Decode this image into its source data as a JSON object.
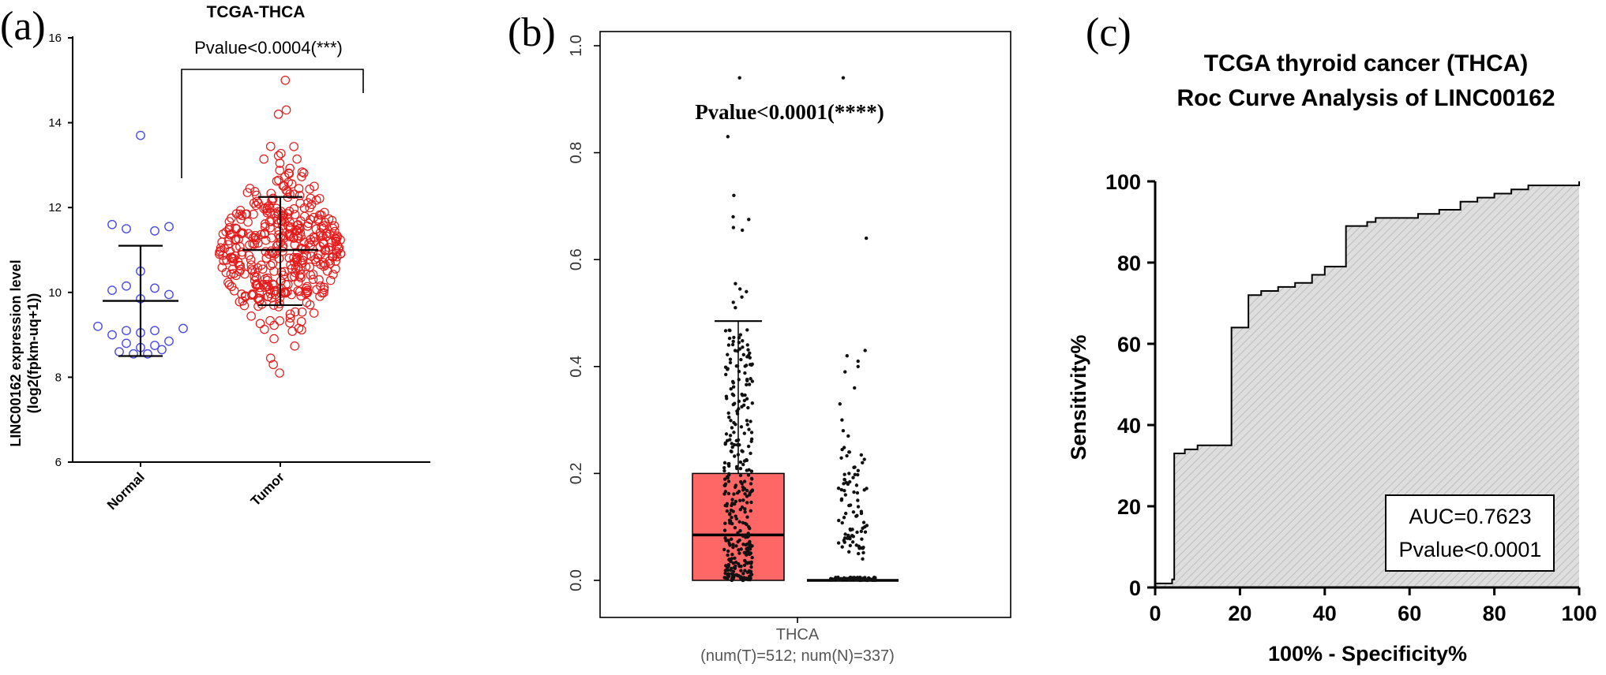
{
  "panels": {
    "a": {
      "label": "(a)"
    },
    "b": {
      "label": "(b)"
    },
    "c": {
      "label": "(c)"
    }
  },
  "colors": {
    "normal": "#4a4ae6",
    "tumor": "#e61a1a",
    "box_fill": "#ff6666",
    "roc_fill": "#d9d9d9"
  },
  "chart_data": [
    {
      "panel": "a",
      "type": "scatter",
      "title": "TCGA-THCA",
      "xlabel": "",
      "ylabel": "LINC00162 expression level\n(log2(fpkm-uq+1))",
      "ylim": [
        6,
        16
      ],
      "yticks": [
        6,
        8,
        10,
        12,
        14,
        16
      ],
      "categories": [
        "Normal",
        "Tumor"
      ],
      "annotation": "Pvalue<0.0004(***)",
      "summary": [
        {
          "group": "Normal",
          "mean": 9.8,
          "sd_low": 8.5,
          "sd_high": 11.1
        },
        {
          "group": "Tumor",
          "mean": 11.0,
          "sd_low": 9.7,
          "sd_high": 12.25
        }
      ],
      "series": [
        {
          "name": "Normal",
          "points": [
            13.7,
            11.6,
            11.55,
            11.5,
            11.45,
            10.5,
            10.15,
            10.1,
            10.05,
            9.95,
            9.85,
            9.2,
            9.15,
            9.1,
            9.1,
            9.05,
            9.0,
            8.85,
            8.8,
            8.75,
            8.7,
            8.55,
            8.55,
            8.6,
            8.65
          ]
        },
        {
          "name": "Tumor",
          "n": 512,
          "min": 8.1,
          "max": 15.0
        }
      ]
    },
    {
      "panel": "b",
      "type": "box",
      "xlabel": "THCA\n(num(T)=512; num(N)=337)",
      "ylabel": "",
      "ylim": [
        0.0,
        1.0
      ],
      "yticks": [
        0.0,
        0.2,
        0.4,
        0.6,
        0.8,
        1.0
      ],
      "annotation": "Pvalue<0.0001(****)",
      "series": [
        {
          "name": "T",
          "n": 512,
          "q1": 0.0,
          "median": 0.085,
          "q3": 0.2,
          "whisker_high": 0.485,
          "outliers": [
            0.94,
            0.83,
            0.72,
            0.68,
            0.675,
            0.66,
            0.655,
            0.555,
            0.545,
            0.54,
            0.53,
            0.52,
            0.51
          ]
        },
        {
          "name": "N",
          "n": 337,
          "q1": 0.0,
          "median": 0.0,
          "q3": 0.0,
          "outliers": [
            0.94,
            0.64,
            0.43,
            0.42,
            0.41,
            0.4,
            0.39,
            0.36,
            0.33,
            0.3,
            0.28,
            0.27,
            0.24,
            0.22,
            0.2,
            0.18,
            0.16,
            0.14,
            0.12,
            0.1,
            0.09,
            0.08,
            0.06,
            0.05,
            0.04
          ]
        }
      ]
    },
    {
      "panel": "c",
      "type": "line",
      "title": "TCGA thyroid cancer (THCA)\nRoc Curve Analysis of LINC00162",
      "xlabel": "100% - Specificity%",
      "ylabel": "Sensitivity%",
      "xlim": [
        0,
        100
      ],
      "ylim": [
        0,
        100
      ],
      "xticks": [
        0,
        20,
        40,
        60,
        80,
        100
      ],
      "yticks": [
        0,
        20,
        40,
        60,
        80,
        100
      ],
      "annotation": [
        "AUC=0.7623",
        "Pvalue<0.0001"
      ],
      "series": [
        {
          "name": "ROC",
          "points": [
            [
              0,
              0
            ],
            [
              0,
              1
            ],
            [
              4,
              1
            ],
            [
              4,
              2
            ],
            [
              4.5,
              2
            ],
            [
              4.5,
              33
            ],
            [
              7,
              33
            ],
            [
              7,
              34
            ],
            [
              10,
              34
            ],
            [
              10,
              35
            ],
            [
              18,
              35
            ],
            [
              18,
              64
            ],
            [
              22,
              64
            ],
            [
              22,
              72
            ],
            [
              25,
              72
            ],
            [
              25,
              73
            ],
            [
              29,
              73
            ],
            [
              29,
              74
            ],
            [
              33,
              74
            ],
            [
              33,
              75
            ],
            [
              37,
              75
            ],
            [
              37,
              77
            ],
            [
              40,
              77
            ],
            [
              40,
              79
            ],
            [
              45,
              79
            ],
            [
              45,
              89
            ],
            [
              50,
              89
            ],
            [
              50,
              90
            ],
            [
              52,
              90
            ],
            [
              52,
              91
            ],
            [
              62,
              91
            ],
            [
              62,
              92
            ],
            [
              67,
              92
            ],
            [
              67,
              93
            ],
            [
              72,
              93
            ],
            [
              72,
              95
            ],
            [
              76,
              95
            ],
            [
              76,
              96
            ],
            [
              80,
              96
            ],
            [
              80,
              97
            ],
            [
              84,
              97
            ],
            [
              84,
              98
            ],
            [
              88,
              98
            ],
            [
              88,
              99
            ],
            [
              100,
              99
            ],
            [
              100,
              100
            ]
          ]
        }
      ]
    }
  ]
}
